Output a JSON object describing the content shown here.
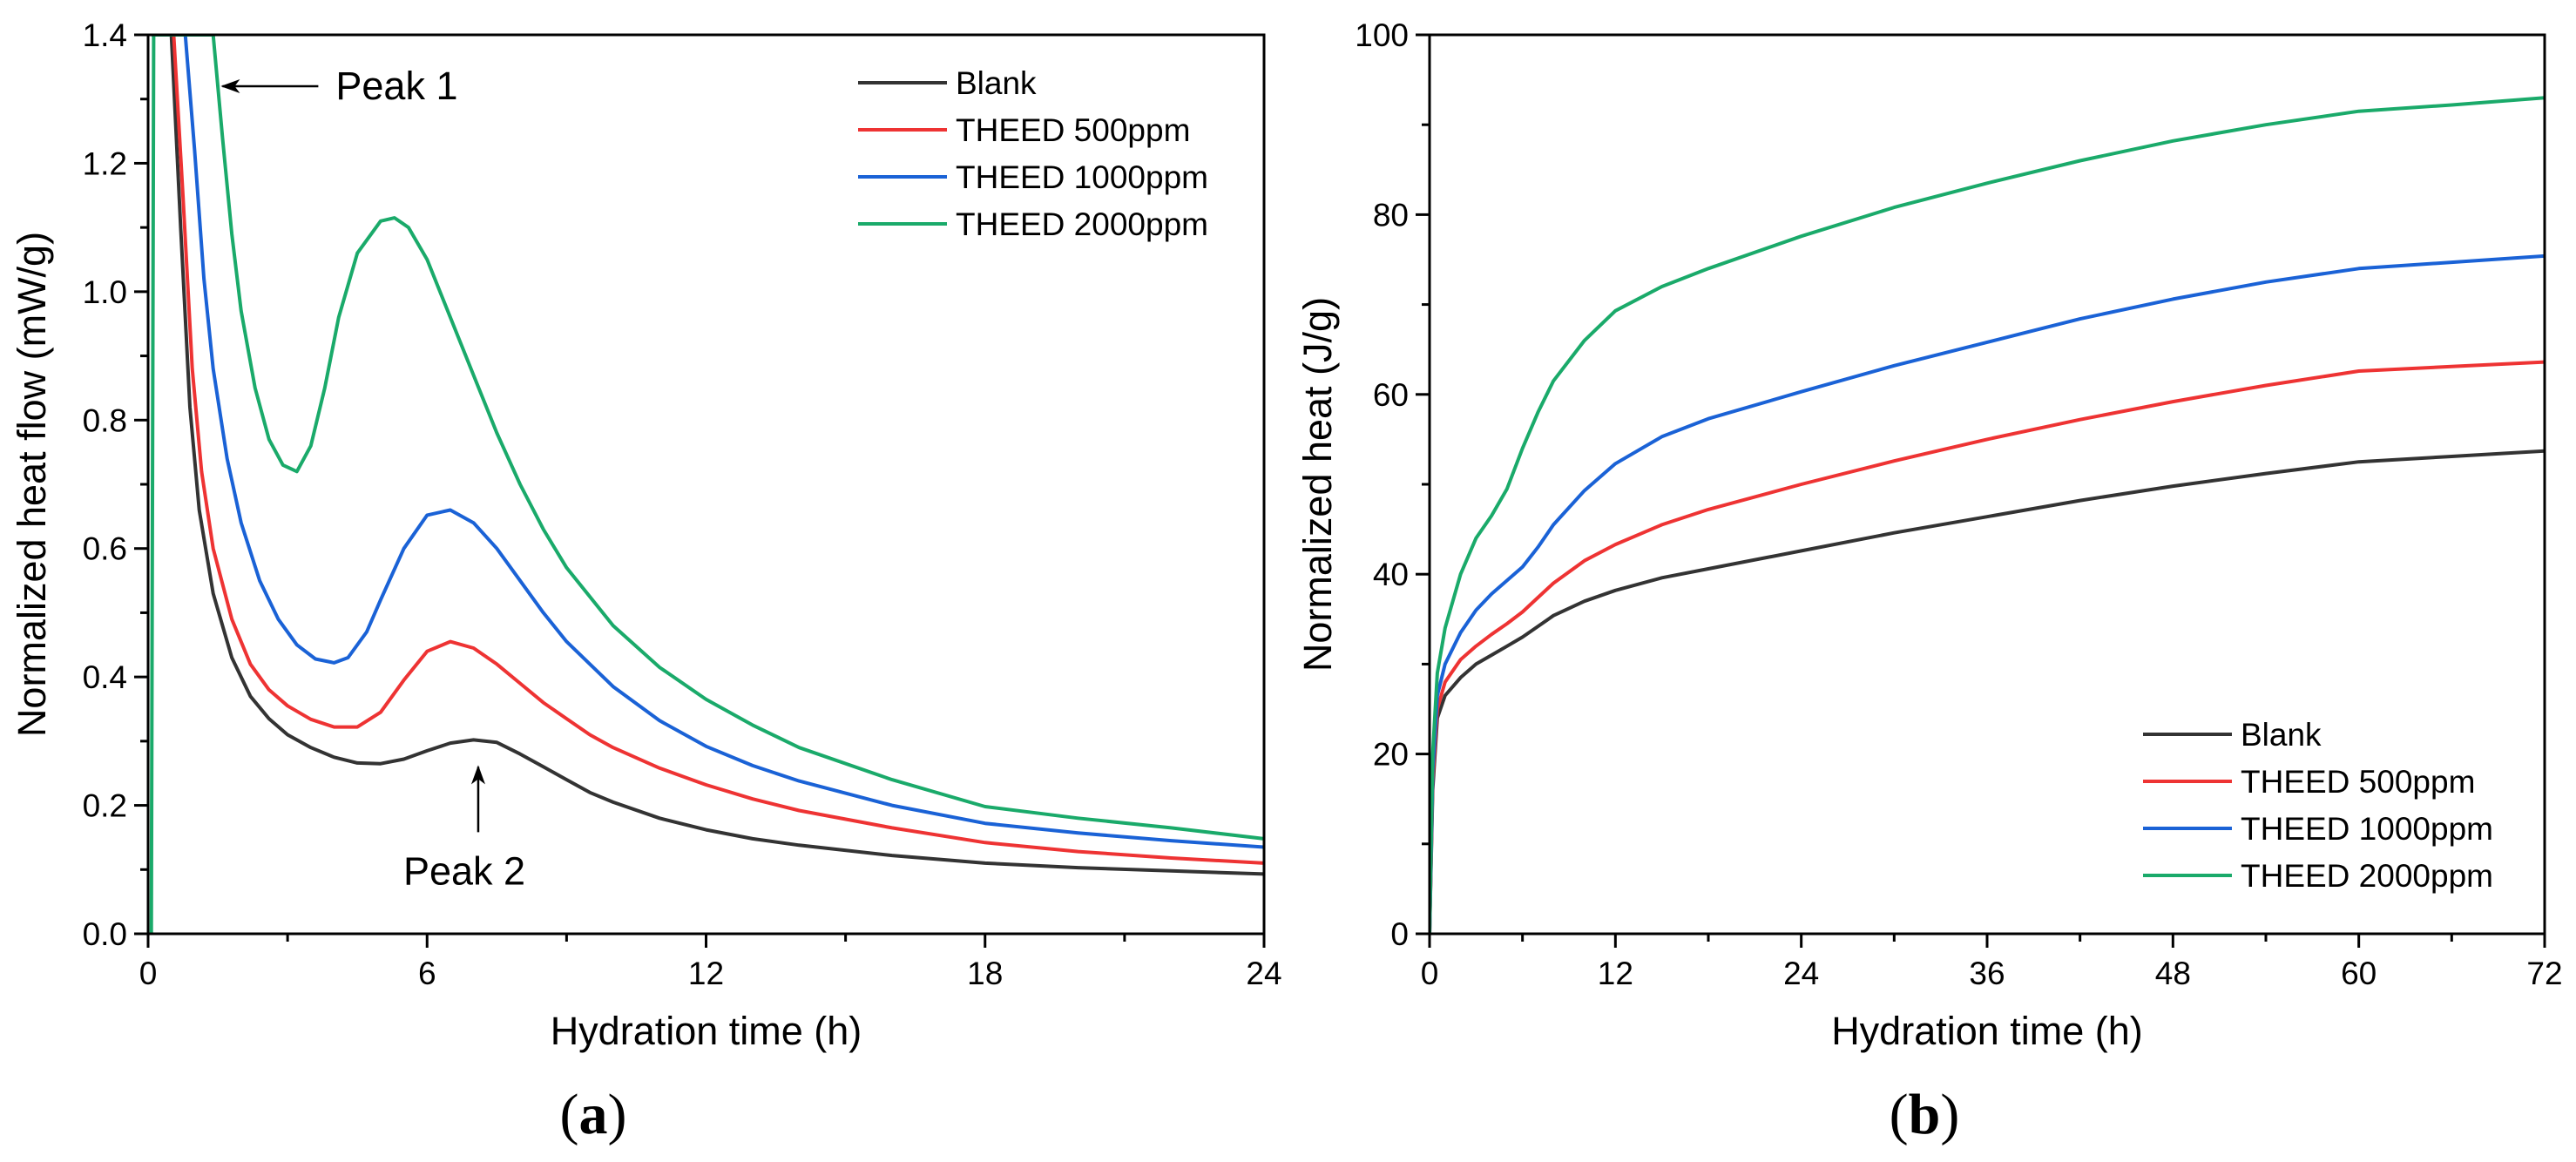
{
  "chart_data": [
    {
      "type": "line",
      "panel_label": {
        "open": "(",
        "letter": "a",
        "close": ")"
      },
      "title": "",
      "xlabel": "Hydration time (h)",
      "ylabel": "Normalized heat flow (mW/g)",
      "xlim": [
        0,
        24
      ],
      "ylim": [
        0,
        1.4
      ],
      "xticks": [
        0,
        6,
        12,
        18,
        24
      ],
      "xtick_labels": [
        "0",
        "6",
        "12",
        "18",
        "24"
      ],
      "yticks": [
        0.0,
        0.2,
        0.4,
        0.6,
        0.8,
        1.0,
        1.2,
        1.4
      ],
      "ytick_labels": [
        "0.0",
        "0.2",
        "0.4",
        "0.6",
        "0.8",
        "1.0",
        "1.2",
        "1.4"
      ],
      "grid": false,
      "legend_position": "top-right",
      "annotations": [
        {
          "text": "Peak 1",
          "target_x": 1.6,
          "target_y": 1.32,
          "arrow": "left"
        },
        {
          "text": "Peak 2",
          "target_x": 7.1,
          "target_y": 0.26,
          "arrow": "up"
        }
      ],
      "series": [
        {
          "name": "Blank",
          "color": "#333333",
          "x": [
            0.1,
            0.5,
            0.7,
            0.9,
            1.1,
            1.4,
            1.8,
            2.2,
            2.6,
            3.0,
            3.5,
            4.0,
            4.5,
            5.0,
            5.5,
            6.0,
            6.5,
            7.0,
            7.5,
            8.0,
            8.5,
            9.0,
            9.5,
            10,
            11,
            12,
            13,
            14,
            16,
            18,
            20,
            22,
            24
          ],
          "y": [
            1.4,
            1.4,
            1.1,
            0.82,
            0.66,
            0.53,
            0.43,
            0.37,
            0.335,
            0.31,
            0.29,
            0.275,
            0.266,
            0.265,
            0.272,
            0.285,
            0.297,
            0.302,
            0.298,
            0.28,
            0.26,
            0.24,
            0.22,
            0.205,
            0.18,
            0.162,
            0.148,
            0.138,
            0.122,
            0.11,
            0.103,
            0.098,
            0.093
          ]
        },
        {
          "name": "THEED 500ppm",
          "color": "#EE3333",
          "x": [
            0.1,
            0.55,
            0.75,
            0.95,
            1.15,
            1.4,
            1.8,
            2.2,
            2.6,
            3.0,
            3.5,
            4.0,
            4.5,
            5.0,
            5.5,
            6.0,
            6.5,
            7.0,
            7.5,
            8.0,
            8.5,
            9.0,
            9.5,
            10,
            11,
            12,
            13,
            14,
            16,
            18,
            20,
            22,
            24
          ],
          "y": [
            1.4,
            1.4,
            1.15,
            0.88,
            0.72,
            0.6,
            0.49,
            0.42,
            0.38,
            0.355,
            0.334,
            0.322,
            0.322,
            0.345,
            0.395,
            0.44,
            0.455,
            0.445,
            0.42,
            0.39,
            0.36,
            0.335,
            0.31,
            0.29,
            0.258,
            0.232,
            0.21,
            0.192,
            0.165,
            0.142,
            0.128,
            0.118,
            0.11
          ]
        },
        {
          "name": "THEED 1000ppm",
          "color": "#1A62D6",
          "x": [
            0.1,
            0.8,
            1.0,
            1.2,
            1.4,
            1.7,
            2.0,
            2.4,
            2.8,
            3.2,
            3.6,
            4.0,
            4.3,
            4.7,
            5.0,
            5.5,
            6.0,
            6.5,
            7.0,
            7.5,
            8.0,
            8.5,
            9.0,
            10,
            11,
            12,
            13,
            14,
            16,
            18,
            20,
            22,
            24
          ],
          "y": [
            1.4,
            1.4,
            1.22,
            1.02,
            0.88,
            0.74,
            0.64,
            0.55,
            0.49,
            0.45,
            0.428,
            0.422,
            0.43,
            0.47,
            0.52,
            0.6,
            0.652,
            0.66,
            0.64,
            0.6,
            0.55,
            0.5,
            0.455,
            0.385,
            0.332,
            0.292,
            0.262,
            0.238,
            0.2,
            0.172,
            0.157,
            0.145,
            0.135
          ]
        },
        {
          "name": "THEED 2000ppm",
          "color": "#1AAA6A",
          "x": [
            0.07,
            0.12,
            1.4,
            1.6,
            1.8,
            2.0,
            2.3,
            2.6,
            2.9,
            3.2,
            3.5,
            3.8,
            4.1,
            4.5,
            5.0,
            5.3,
            5.6,
            6.0,
            6.5,
            7.0,
            7.5,
            8.0,
            8.5,
            9.0,
            10,
            11,
            12,
            13,
            14,
            16,
            18,
            20,
            22,
            24
          ],
          "y": [
            0.0,
            1.4,
            1.4,
            1.24,
            1.09,
            0.97,
            0.85,
            0.77,
            0.73,
            0.72,
            0.76,
            0.85,
            0.96,
            1.06,
            1.11,
            1.115,
            1.1,
            1.05,
            0.96,
            0.87,
            0.78,
            0.7,
            0.63,
            0.57,
            0.48,
            0.415,
            0.365,
            0.325,
            0.29,
            0.24,
            0.198,
            0.18,
            0.165,
            0.148
          ]
        }
      ]
    },
    {
      "type": "line",
      "panel_label": {
        "open": "(",
        "letter": "b",
        "close": ")"
      },
      "title": "",
      "xlabel": "Hydration time (h)",
      "ylabel": "Normalized heat (J/g)",
      "xlim": [
        0,
        72
      ],
      "ylim": [
        0,
        100
      ],
      "xticks": [
        0,
        12,
        24,
        36,
        48,
        60,
        72
      ],
      "xtick_labels": [
        "0",
        "12",
        "24",
        "36",
        "48",
        "60",
        "72"
      ],
      "yticks": [
        0,
        20,
        40,
        60,
        80,
        100
      ],
      "ytick_labels": [
        "0",
        "20",
        "40",
        "60",
        "80",
        "100"
      ],
      "grid": false,
      "legend_position": "bottom-right",
      "series": [
        {
          "name": "Blank",
          "color": "#333333",
          "x": [
            0,
            0.2,
            0.5,
            1,
            2,
            3,
            4,
            5,
            6,
            7,
            8,
            10,
            12,
            15,
            18,
            24,
            30,
            36,
            42,
            48,
            54,
            60,
            66,
            72
          ],
          "y": [
            0,
            16,
            24,
            26.5,
            28.5,
            30,
            31,
            32,
            33,
            34.2,
            35.4,
            37,
            38.2,
            39.6,
            40.6,
            42.6,
            44.6,
            46.4,
            48.2,
            49.8,
            51.2,
            52.5,
            53.1,
            53.7
          ]
        },
        {
          "name": "THEED 500ppm",
          "color": "#EE3333",
          "x": [
            0,
            0.2,
            0.5,
            1,
            2,
            3,
            4,
            5,
            6,
            7,
            8,
            10,
            12,
            15,
            18,
            24,
            30,
            36,
            42,
            48,
            54,
            60,
            66,
            72
          ],
          "y": [
            0,
            17,
            25,
            28,
            30.5,
            32,
            33.3,
            34.5,
            35.8,
            37.4,
            39,
            41.5,
            43.3,
            45.5,
            47.2,
            50,
            52.6,
            55,
            57.2,
            59.2,
            61,
            62.6,
            63.1,
            63.6
          ]
        },
        {
          "name": "THEED 1000ppm",
          "color": "#1A62D6",
          "x": [
            0,
            0.2,
            0.5,
            1,
            2,
            3,
            4,
            5,
            6,
            7,
            8,
            10,
            12,
            15,
            18,
            24,
            30,
            36,
            42,
            48,
            54,
            60,
            66,
            72
          ],
          "y": [
            0,
            18,
            26.5,
            30,
            33.5,
            36,
            37.8,
            39.3,
            40.8,
            43,
            45.5,
            49.3,
            52.3,
            55.3,
            57.3,
            60.3,
            63.2,
            65.8,
            68.4,
            70.6,
            72.5,
            74,
            74.7,
            75.4
          ]
        },
        {
          "name": "THEED 2000ppm",
          "color": "#1AAA6A",
          "x": [
            0,
            0.2,
            0.5,
            1,
            2,
            3,
            4,
            5,
            6,
            7,
            8,
            10,
            12,
            15,
            18,
            24,
            30,
            36,
            42,
            48,
            54,
            60,
            66,
            72
          ],
          "y": [
            0,
            20,
            29,
            34,
            40,
            44,
            46.5,
            49.5,
            54,
            58,
            61.5,
            66,
            69.3,
            72,
            74,
            77.6,
            80.8,
            83.5,
            86,
            88.2,
            90,
            91.5,
            92.2,
            93
          ]
        }
      ]
    }
  ]
}
